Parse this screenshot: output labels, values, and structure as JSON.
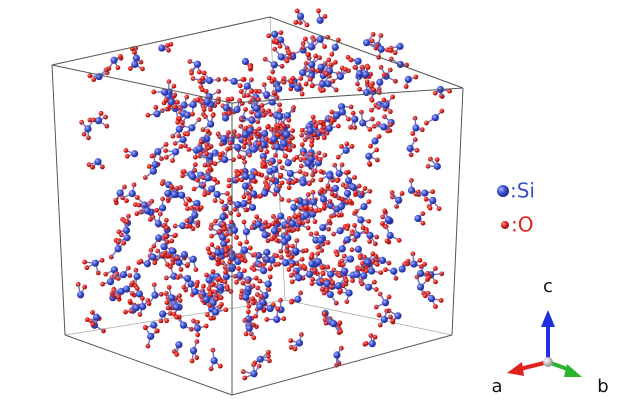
{
  "legend": [
    {
      "label": ":Si",
      "color": "#3a4fd0"
    },
    {
      "label": ":O",
      "color": "#e0221c"
    }
  ],
  "axes": {
    "a": {
      "label": "a",
      "color": "#e0221c"
    },
    "b": {
      "label": "b",
      "color": "#2cb52c"
    },
    "c": {
      "label": "c",
      "color": "#1f2fe0"
    }
  }
}
